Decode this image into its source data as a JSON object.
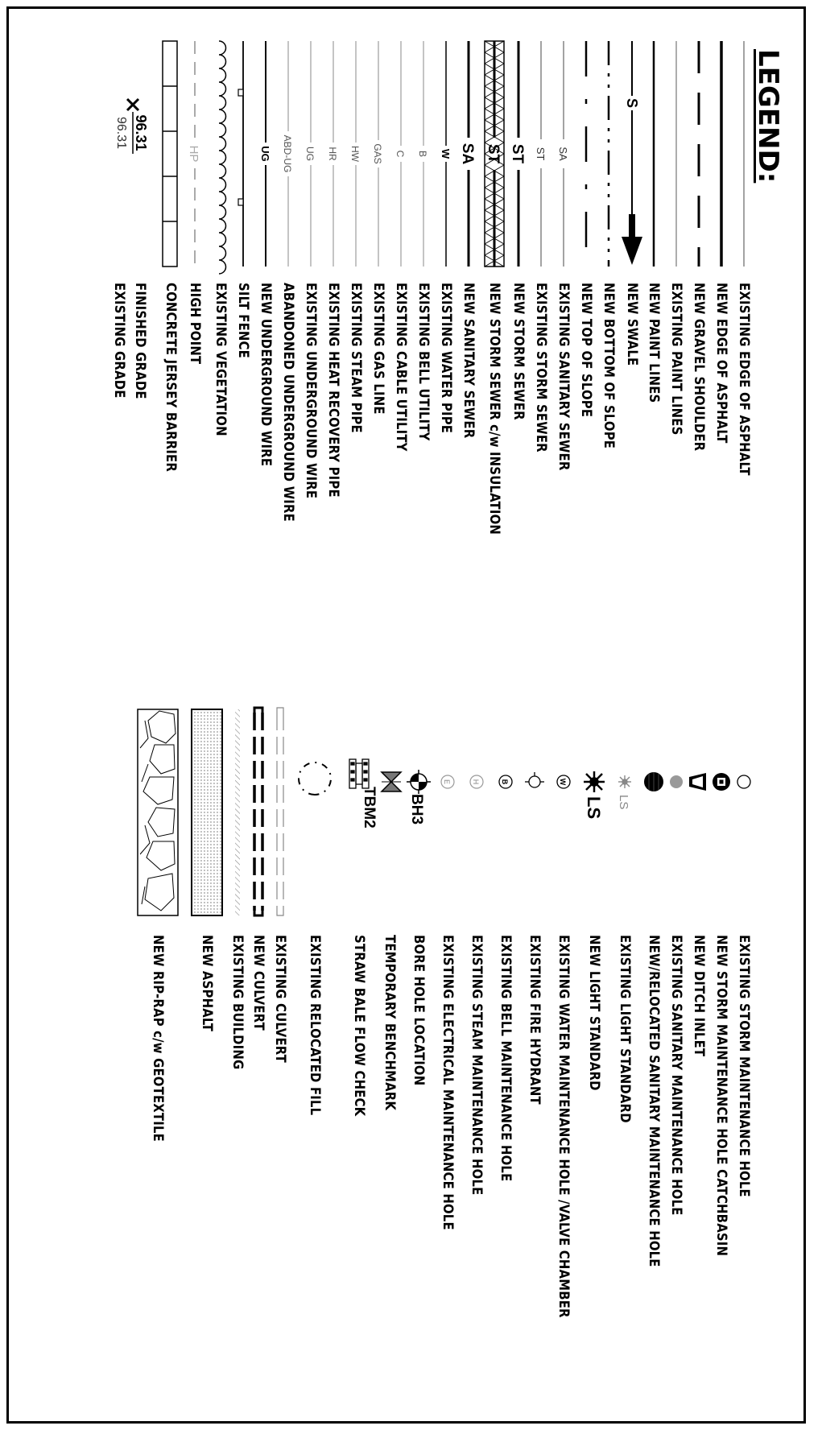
{
  "legend": {
    "title": "LEGEND:",
    "left_items": [
      {
        "label": "EXISTING EDGE OF ASPHALT"
      },
      {
        "label": "NEW EDGE OF ASPHALT"
      },
      {
        "label": "NEW GRAVEL SHOULDER"
      },
      {
        "label": "EXISTING PAINT LINES"
      },
      {
        "label": "NEW PAINT LINES"
      },
      {
        "label": "NEW SWALE",
        "code": "S"
      },
      {
        "label": "NEW BOTTOM OF SLOPE"
      },
      {
        "label": "NEW TOP OF SLOPE"
      },
      {
        "label": "EXISTING SANITARY SEWER",
        "code": "SA"
      },
      {
        "label": "EXISTING STORM SEWER",
        "code": "ST"
      },
      {
        "label": "NEW STORM SEWER",
        "code": "ST"
      },
      {
        "label": "NEW STORM SEWER c/w INSULATION",
        "code": "ST"
      },
      {
        "label": "NEW SANITARY SEWER",
        "code": "SA"
      },
      {
        "label": "EXISTING WATER PIPE",
        "code": "W"
      },
      {
        "label": "EXISTING BELL UTILITY",
        "code": "B"
      },
      {
        "label": "EXISTING CABLE UTILITY",
        "code": "C"
      },
      {
        "label": "EXISTING GAS LINE",
        "code": "GAS"
      },
      {
        "label": "EXISTING STEAM PIPE",
        "code": "HW"
      },
      {
        "label": "EXISTING HEAT RECOVERY PIPE",
        "code": "HR"
      },
      {
        "label": "EXISTING UNDERGROUND WIRE",
        "code": "UG"
      },
      {
        "label": "ABANDONED UNDERGROUND WIRE",
        "code": "ABD-UG"
      },
      {
        "label": "NEW UNDERGROUND WIRE",
        "code": "UG"
      },
      {
        "label": "SILT FENCE"
      },
      {
        "label": "EXISTING VEGETATION"
      },
      {
        "label": "HIGH POINT",
        "code": "HP"
      },
      {
        "label": "CONCRETE JERSEY BARRIER"
      },
      {
        "label": "FINISHED GRADE",
        "value": "96.31"
      },
      {
        "label": "EXISTING GRADE",
        "value": "96.31"
      }
    ],
    "right_items": [
      {
        "label": "EXISTING STORM MAINTENANCE HOLE"
      },
      {
        "label": "NEW STORM MAINTENANCE HOLE CATCHBASIN"
      },
      {
        "label": "NEW DITCH INLET"
      },
      {
        "label": "EXISTING SANITARY MAINTENANCE HOLE"
      },
      {
        "label": "NEW/RELOCATED SANITARY MAINTENANCE HOLE"
      },
      {
        "label": "EXISTING LIGHT STANDARD",
        "code": "LS"
      },
      {
        "label": "NEW LIGHT STANDARD",
        "code": "LS"
      },
      {
        "label": "EXISTING WATER MAINTENANCE HOLE /VALVE CHAMBER",
        "code": "W"
      },
      {
        "label": "EXISTING FIRE HYDRANT"
      },
      {
        "label": "EXISTING BELL MAINTENANCE HOLE",
        "code": "B"
      },
      {
        "label": "EXISTING STEAM MAINTENANCE HOLE",
        "code": "H"
      },
      {
        "label": "EXISTING ELECTRICAL MAINTENANCE HOLE",
        "code": "E"
      },
      {
        "label": "BORE HOLE LOCATION",
        "code": "BH3"
      },
      {
        "label": "TEMPORARY BENCHMARK",
        "code": "TBM2"
      },
      {
        "label": "STRAW BALE FLOW CHECK"
      },
      {
        "label": "EXISTING RELOCATED FILL"
      },
      {
        "label": "EXISTING CULVERT"
      },
      {
        "label": "NEW CULVERT"
      },
      {
        "label": "EXISTING BUILDING"
      },
      {
        "label": "NEW ASPHALT"
      },
      {
        "label": "NEW RIP-RAP c/w GEOTEXTILE"
      }
    ]
  }
}
